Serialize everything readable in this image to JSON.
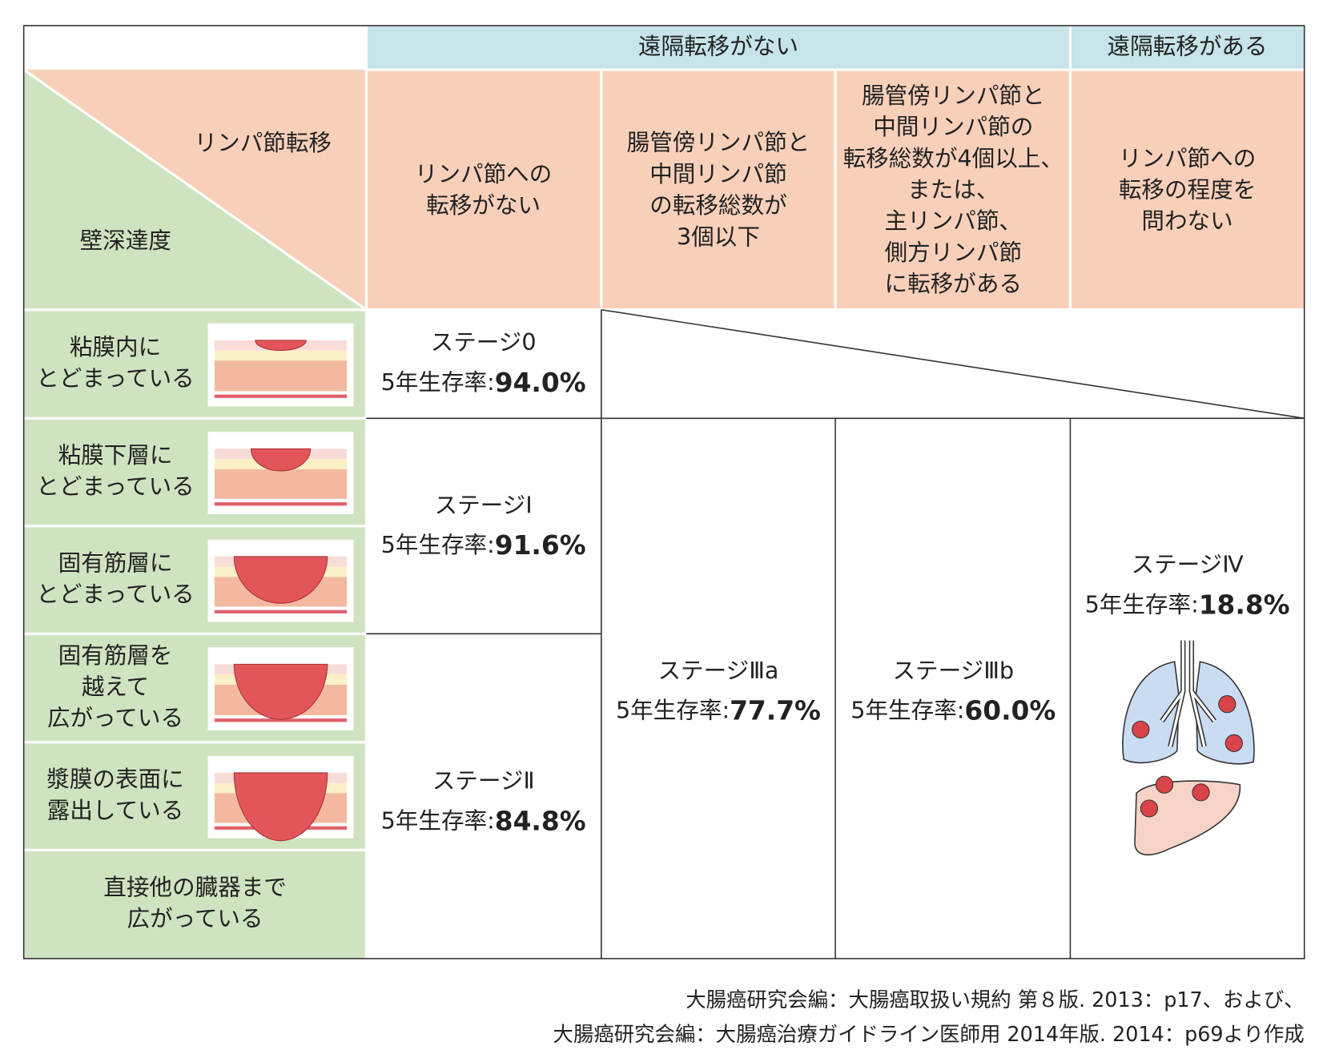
{
  "header": {
    "no_distant": "遠隔転移がない",
    "distant": "遠隔転移がある"
  },
  "corner": {
    "lymph": "リンパ節転移",
    "depth": "壁深達度"
  },
  "columns": [
    [
      "リンパ節への",
      "転移がない"
    ],
    [
      "腸管傍リンパ節と",
      "中間リンパ節",
      "の転移総数が",
      "3個以下"
    ],
    [
      "腸管傍リンパ節と",
      "中間リンパ節の",
      "転移総数が4個以上、",
      "または、",
      "主リンパ節、",
      "側方リンパ節",
      "に転移がある"
    ],
    [
      "リンパ節への",
      "転移の程度を",
      "問わない"
    ]
  ],
  "rows": [
    [
      "粘膜内に",
      "とどまっている"
    ],
    [
      "粘膜下層に",
      "とどまっている"
    ],
    [
      "固有筋層に",
      "とどまっている"
    ],
    [
      "固有筋層を",
      "越えて",
      "広がっている"
    ],
    [
      "漿膜の表面に",
      "露出している"
    ],
    [
      "直接他の臓器まで",
      "広がっている"
    ]
  ],
  "stages": [
    {
      "label": "ステージ0",
      "rate_label": "5年生存率:",
      "rate": "94.0%"
    },
    {
      "label": "ステージⅠ",
      "rate_label": "5年生存率:",
      "rate": "91.6%"
    },
    {
      "label": "ステージⅡ",
      "rate_label": "5年生存率:",
      "rate": "84.8%"
    },
    {
      "label": "ステージⅢa",
      "rate_label": "5年生存率:",
      "rate": "77.7%"
    },
    {
      "label": "ステージⅢb",
      "rate_label": "5年生存率:",
      "rate": "60.0%"
    },
    {
      "label": "ステージⅣ",
      "rate_label": "5年生存率:",
      "rate": "18.8%"
    }
  ],
  "source": [
    "大腸癌研究会編：大腸癌取扱い規約 第８版. 2013：p17、および、",
    "大腸癌研究会編：大腸癌治療ガイドライン医師用 2014年版. 2014：p69より作成"
  ]
}
